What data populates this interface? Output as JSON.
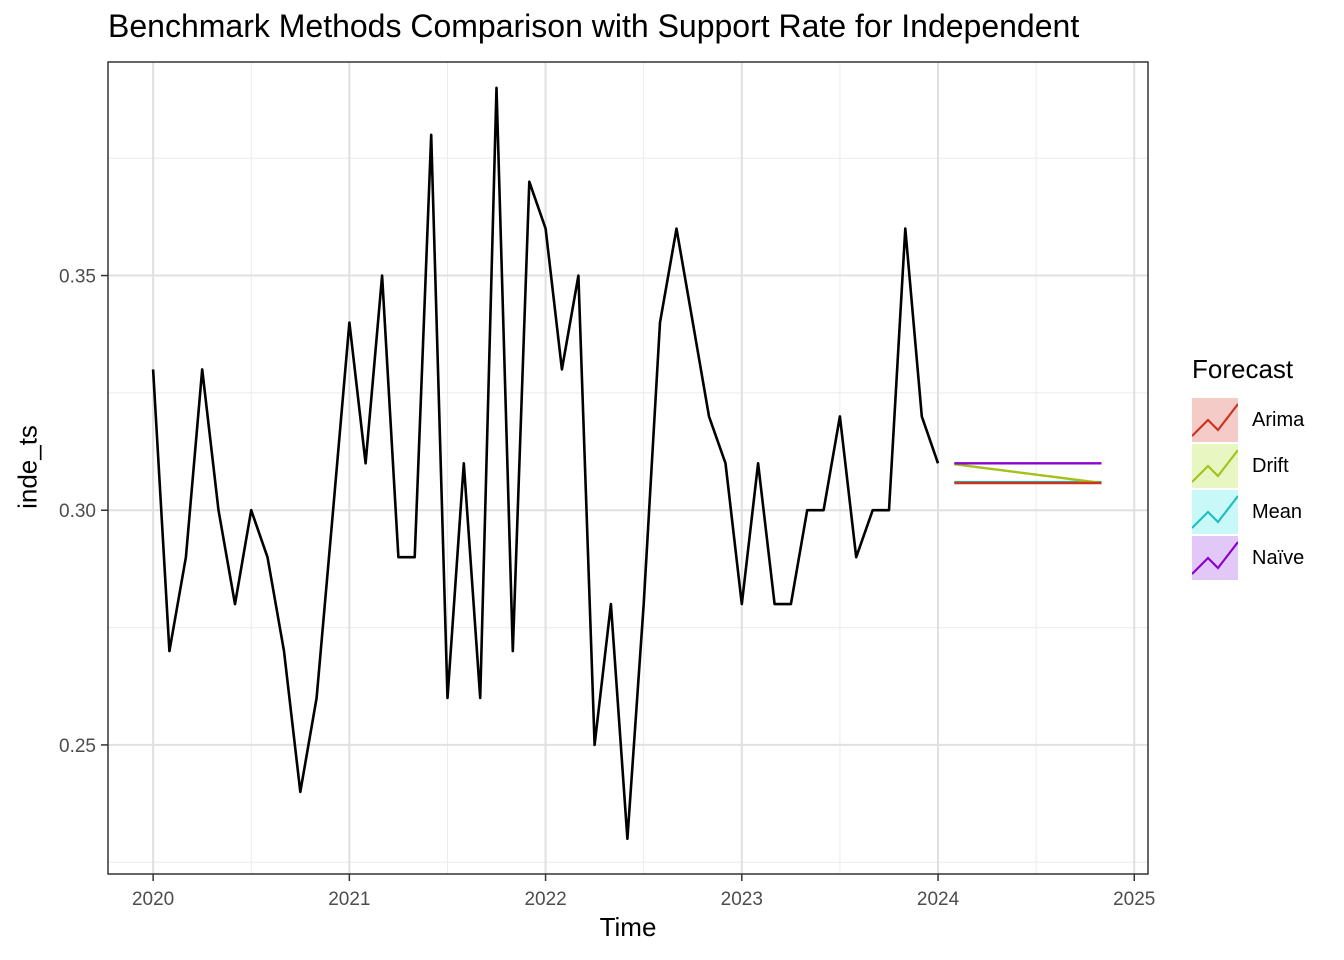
{
  "chart_data": {
    "type": "line",
    "title": "Benchmark Methods Comparison with Support Rate for Independent",
    "xlabel": "Time",
    "ylabel": "inde_ts",
    "xlim": [
      2019.77,
      2025.07
    ],
    "ylim": [
      0.2225,
      0.3955
    ],
    "x_ticks": [
      2020,
      2021,
      2022,
      2023,
      2024,
      2025
    ],
    "x_tick_labels": [
      "2020",
      "2021",
      "2022",
      "2023",
      "2024",
      "2025"
    ],
    "y_ticks": [
      0.25,
      0.3,
      0.35
    ],
    "y_tick_labels": [
      "0.25",
      "0.30",
      "0.35"
    ],
    "grid": true,
    "legend_position": "right",
    "series": [
      {
        "x": [
          2020.0,
          2020.083,
          2020.167,
          2020.25,
          2020.333,
          2020.417,
          2020.5,
          2020.583,
          2020.667,
          2020.75,
          2020.833,
          2020.917,
          2021.0,
          2021.083,
          2021.167,
          2021.25,
          2021.333,
          2021.417,
          2021.5,
          2021.583,
          2021.667,
          2021.75,
          2021.833,
          2021.917,
          2022.0,
          2022.083,
          2022.167,
          2022.25,
          2022.333,
          2022.417,
          2022.5,
          2022.583,
          2022.667,
          2022.75,
          2022.833,
          2022.917,
          2023.0,
          2023.083,
          2023.167,
          2023.25,
          2023.333,
          2023.417,
          2023.5,
          2023.583,
          2023.667,
          2023.75,
          2023.833,
          2023.917,
          2024.0
        ],
        "values": [
          0.33,
          0.27,
          0.29,
          0.33,
          0.3,
          0.28,
          0.3,
          0.29,
          0.27,
          0.24,
          0.26,
          0.3,
          0.34,
          0.31,
          0.35,
          0.29,
          0.29,
          0.38,
          0.26,
          0.31,
          0.26,
          0.39,
          0.27,
          0.37,
          0.36,
          0.33,
          0.35,
          0.25,
          0.28,
          0.23,
          0.28,
          0.34,
          0.36,
          0.34,
          0.32,
          0.31,
          0.28,
          0.31,
          0.28,
          0.28,
          0.3,
          0.3,
          0.32,
          0.29,
          0.3,
          0.3,
          0.36,
          0.32,
          0.31
        ],
        "color": "#000000"
      }
    ],
    "forecasts": [
      {
        "name": "Arima",
        "color": "#CC3322",
        "fill": "#F4CBC7",
        "x": [
          2024.083,
          2024.833
        ],
        "values": [
          0.3058,
          0.3058
        ]
      },
      {
        "name": "Drift",
        "color": "#A3C219",
        "fill": "#E8F6C2",
        "x": [
          2024.083,
          2024.833
        ],
        "values": [
          0.3098,
          0.3058
        ]
      },
      {
        "name": "Mean",
        "color": "#1FBFBF",
        "fill": "#C8F8F8",
        "x": [
          2024.083,
          2024.833
        ],
        "values": [
          0.306,
          0.306
        ]
      },
      {
        "name": "Naïve",
        "color": "#8B00CC",
        "fill": "#E2C8F6",
        "x": [
          2024.083,
          2024.833
        ],
        "values": [
          0.31,
          0.31
        ]
      }
    ]
  },
  "legend": {
    "title": "Forecast"
  }
}
